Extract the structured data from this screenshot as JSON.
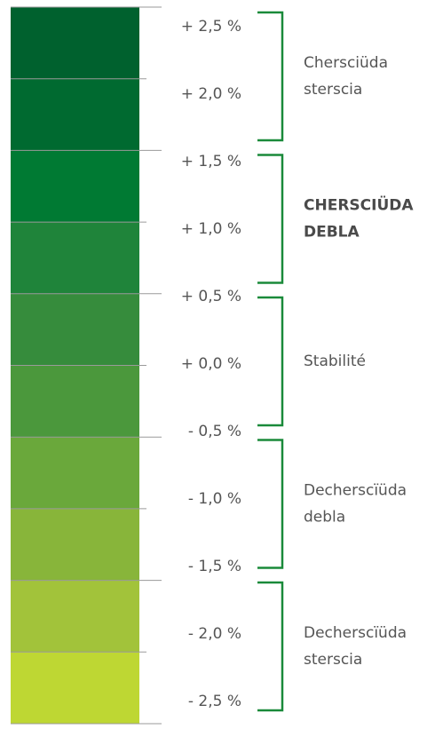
{
  "levels": [
    "+ 2,5 %",
    "+ 2,0 %",
    "+ 1,5 %",
    "+ 1,0 %",
    "+ 0,5 %",
    "+ 0,0 %",
    "- 0,5 %",
    "- 1,0 %",
    "- 1,5 %",
    "- 2,0 %",
    "- 2,5 %"
  ],
  "groups": [
    {
      "lines": [
        "Chersciüda",
        "sterscia"
      ]
    },
    {
      "lines": [
        "CHERSCIÜDA",
        "DEBLA"
      ]
    },
    {
      "lines": [
        "Stabilité"
      ]
    },
    {
      "lines": [
        "Decherscïüda",
        "debla"
      ]
    },
    {
      "lines": [
        "Decherscïüda",
        "sterscia"
      ]
    }
  ]
}
